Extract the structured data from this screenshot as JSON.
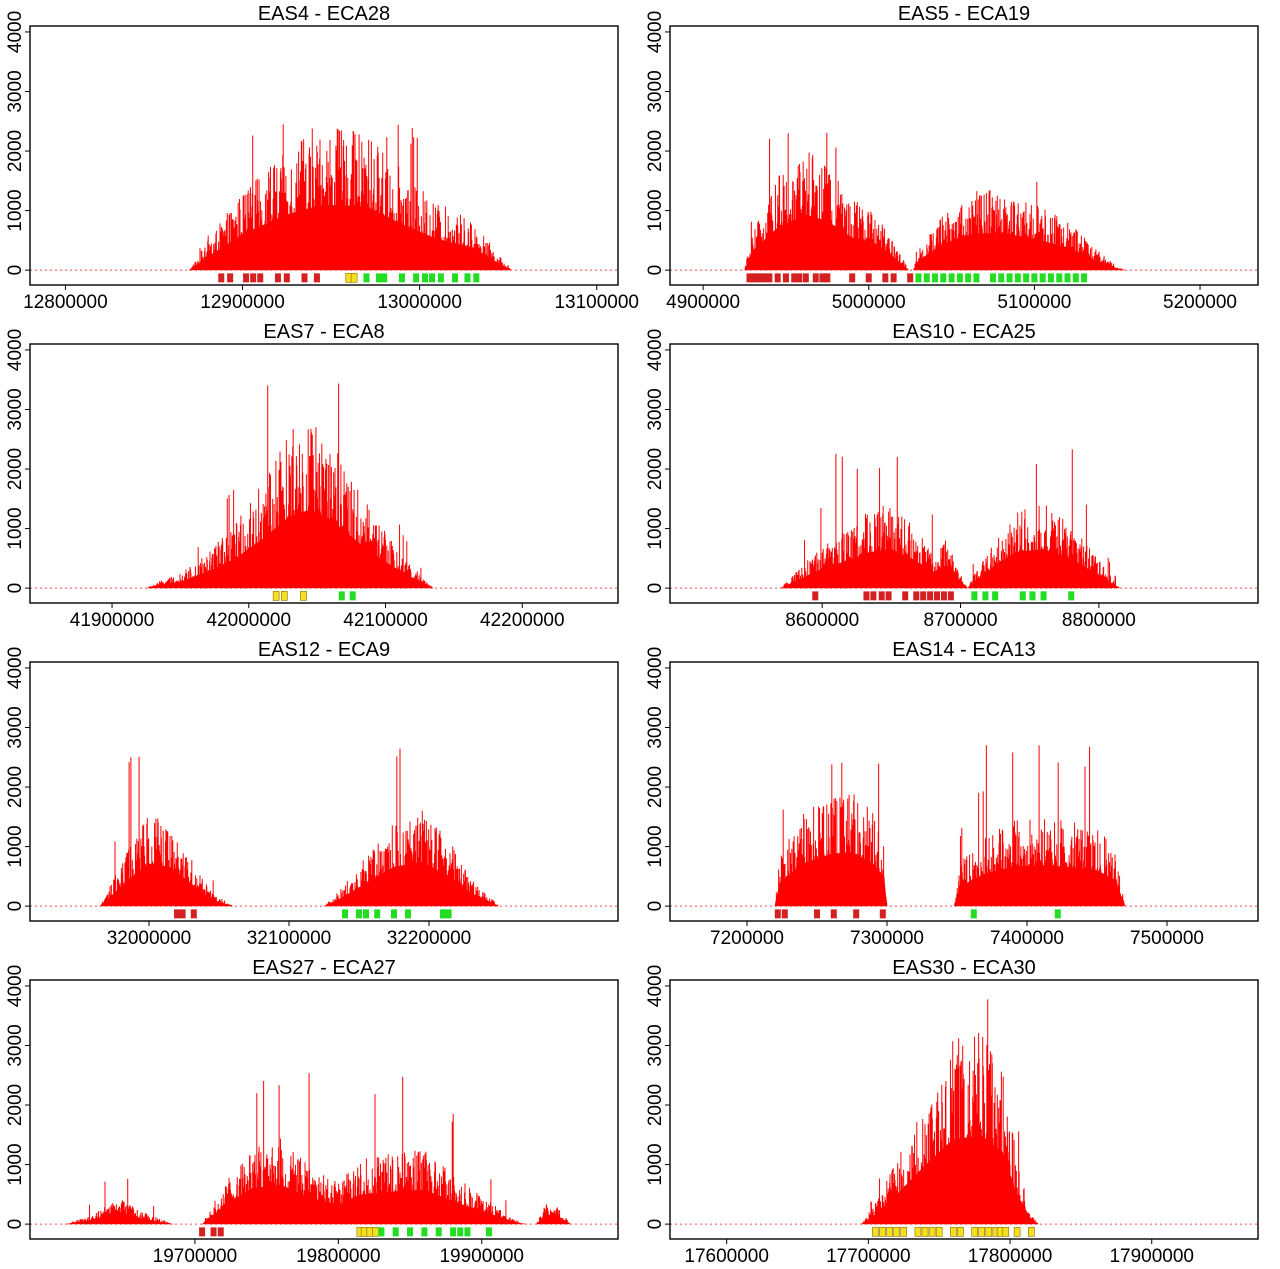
{
  "colors": {
    "coverage": "#ff0000",
    "marker_red": "#d42020",
    "marker_yellow": "#f5e020",
    "marker_green": "#22dd22",
    "marker_border": "#8a6a00",
    "frame": "#000000"
  },
  "chart_data": [
    {
      "type": "area",
      "title": "EAS4 - ECA28",
      "xlim": [
        12780000,
        13112000
      ],
      "ylim": [
        -250,
        4100
      ],
      "yticks": [
        0,
        1000,
        2000,
        3000,
        4000
      ],
      "xticks": [
        12800000,
        12900000,
        13000000,
        13100000
      ],
      "profile": [
        [
          12870000,
          0
        ],
        [
          12880000,
          400
        ],
        [
          12900000,
          1100
        ],
        [
          12925000,
          1700
        ],
        [
          12945000,
          2000
        ],
        [
          12970000,
          1950
        ],
        [
          12990000,
          1400
        ],
        [
          13010000,
          950
        ],
        [
          13030000,
          700
        ],
        [
          13045000,
          200
        ],
        [
          13052000,
          0
        ]
      ],
      "peak_max": 2450,
      "markers": {
        "red": [
          12888000,
          12893000,
          12902000,
          12906000,
          12910000,
          12920000,
          12925000,
          12935000,
          12942000
        ],
        "yellow": [
          12960000,
          12963000
        ],
        "green": [
          12970000,
          12977000,
          12980000,
          12990000,
          12998000,
          13003000,
          13007000,
          13012000,
          13020000,
          13027000,
          13032000
        ]
      }
    },
    {
      "type": "area",
      "title": "EAS5 - ECA19",
      "xlim": [
        4880000,
        5235000
      ],
      "ylim": [
        -250,
        4100
      ],
      "yticks": [
        0,
        1000,
        2000,
        3000,
        4000
      ],
      "xticks": [
        4900000,
        5000000,
        5100000,
        5200000
      ],
      "profile": [
        [
          4925000,
          0
        ],
        [
          4930000,
          600
        ],
        [
          4945000,
          1300
        ],
        [
          4962000,
          1700
        ],
        [
          4975000,
          1500
        ],
        [
          4990000,
          1000
        ],
        [
          5005000,
          800
        ],
        [
          5020000,
          200
        ],
        [
          5024000,
          0
        ],
        [
          5027000,
          0
        ],
        [
          5030000,
          300
        ],
        [
          5045000,
          800
        ],
        [
          5062000,
          1100
        ],
        [
          5080000,
          1150
        ],
        [
          5100000,
          950
        ],
        [
          5120000,
          700
        ],
        [
          5135000,
          350
        ],
        [
          5150000,
          50
        ],
        [
          5155000,
          0
        ]
      ],
      "peak_max": 2420,
      "markers": {
        "red": [
          4928000,
          4931000,
          4934000,
          4937000,
          4940000,
          4945000,
          4950000,
          4955000,
          4958000,
          4962000,
          4968000,
          4972000,
          4975000,
          4990000,
          5000000,
          5010000,
          5015000,
          5025000
        ],
        "yellow": [],
        "green": [
          5030000,
          5035000,
          5040000,
          5045000,
          5050000,
          5055000,
          5060000,
          5065000,
          5075000,
          5080000,
          5085000,
          5090000,
          5095000,
          5100000,
          5105000,
          5110000,
          5115000,
          5120000,
          5125000,
          5130000
        ]
      }
    },
    {
      "type": "area",
      "title": "EAS7 - ECA8",
      "xlim": [
        41840000,
        42270000
      ],
      "ylim": [
        -250,
        4100
      ],
      "yticks": [
        0,
        1000,
        2000,
        3000,
        4000
      ],
      "xticks": [
        41900000,
        42000000,
        42100000,
        42200000
      ],
      "profile": [
        [
          41925000,
          0
        ],
        [
          41935000,
          100
        ],
        [
          41950000,
          200
        ],
        [
          41970000,
          500
        ],
        [
          41990000,
          900
        ],
        [
          42010000,
          1500
        ],
        [
          42030000,
          2200
        ],
        [
          42045000,
          2400
        ],
        [
          42060000,
          2100
        ],
        [
          42080000,
          1400
        ],
        [
          42100000,
          800
        ],
        [
          42120000,
          300
        ],
        [
          42135000,
          0
        ]
      ],
      "peak_max": 3750,
      "markers": {
        "red": [],
        "yellow": [
          42020000,
          42026000,
          42040000
        ],
        "green": [
          42068000,
          42076000
        ]
      }
    },
    {
      "type": "area",
      "title": "EAS10 - ECA25",
      "xlim": [
        8490000,
        8915000
      ],
      "ylim": [
        -250,
        4100
      ],
      "yticks": [
        0,
        1000,
        2000,
        3000,
        4000
      ],
      "xticks": [
        8600000,
        8700000,
        8800000
      ],
      "profile": [
        [
          8570000,
          0
        ],
        [
          8580000,
          200
        ],
        [
          8595000,
          500
        ],
        [
          8615000,
          800
        ],
        [
          8635000,
          1100
        ],
        [
          8650000,
          1200
        ],
        [
          8665000,
          900
        ],
        [
          8680000,
          500
        ],
        [
          8690000,
          700
        ],
        [
          8700000,
          200
        ],
        [
          8705000,
          0
        ],
        [
          8710000,
          200
        ],
        [
          8725000,
          700
        ],
        [
          8740000,
          1100
        ],
        [
          8760000,
          1200
        ],
        [
          8780000,
          900
        ],
        [
          8800000,
          400
        ],
        [
          8815000,
          0
        ]
      ],
      "peak_max": 2350,
      "markers": {
        "red": [
          8595000,
          8632000,
          8637000,
          8643000,
          8648000,
          8660000,
          8668000,
          8673000,
          8678000,
          8683000,
          8688000,
          8693000
        ],
        "yellow": [],
        "green": [
          8710000,
          8718000,
          8725000,
          8745000,
          8752000,
          8760000,
          8780000
        ]
      }
    },
    {
      "type": "area",
      "title": "EAS12 - ECA9",
      "xlim": [
        31915000,
        32335000
      ],
      "ylim": [
        -250,
        4100
      ],
      "yticks": [
        0,
        1000,
        2000,
        3000,
        4000
      ],
      "xticks": [
        32000000,
        32100000,
        32200000
      ],
      "profile": [
        [
          31965000,
          0
        ],
        [
          31970000,
          200
        ],
        [
          31985000,
          800
        ],
        [
          32000000,
          1300
        ],
        [
          32015000,
          1200
        ],
        [
          32030000,
          700
        ],
        [
          32045000,
          200
        ],
        [
          32060000,
          0
        ],
        [
          32125000,
          0
        ],
        [
          32135000,
          200
        ],
        [
          32155000,
          700
        ],
        [
          32175000,
          1200
        ],
        [
          32195000,
          1350
        ],
        [
          32215000,
          900
        ],
        [
          32230000,
          400
        ],
        [
          32250000,
          0
        ]
      ],
      "peak_max": 2650,
      "markers": {
        "red": [
          32020000,
          32024000,
          32032000
        ],
        "yellow": [],
        "green": [
          32140000,
          32150000,
          32155000,
          32163000,
          32175000,
          32185000,
          32210000,
          32214000
        ]
      }
    },
    {
      "type": "area",
      "title": "EAS14 - ECA13",
      "xlim": [
        7145000,
        7565000
      ],
      "ylim": [
        -250,
        4100
      ],
      "yticks": [
        0,
        1000,
        2000,
        3000,
        4000
      ],
      "xticks": [
        7200000,
        7300000,
        7400000,
        7500000
      ],
      "profile": [
        [
          7220000,
          0
        ],
        [
          7223000,
          700
        ],
        [
          7240000,
          1300
        ],
        [
          7260000,
          1600
        ],
        [
          7275000,
          1650
        ],
        [
          7290000,
          1300
        ],
        [
          7298000,
          900
        ],
        [
          7300000,
          0
        ],
        [
          7348000,
          0
        ],
        [
          7352000,
          600
        ],
        [
          7370000,
          1000
        ],
        [
          7390000,
          1200
        ],
        [
          7410000,
          1250
        ],
        [
          7430000,
          1200
        ],
        [
          7450000,
          1100
        ],
        [
          7463000,
          800
        ],
        [
          7470000,
          0
        ]
      ],
      "peak_max": 2750,
      "markers": {
        "red": [
          7222000,
          7227000,
          7250000,
          7262000,
          7278000,
          7297000
        ],
        "yellow": [],
        "green": [
          7362000,
          7422000
        ]
      }
    },
    {
      "type": "area",
      "title": "EAS27 - ECA27",
      "xlim": [
        19585000,
        19995000
      ],
      "ylim": [
        -250,
        4100
      ],
      "yticks": [
        0,
        1000,
        2000,
        3000,
        4000
      ],
      "xticks": [
        19700000,
        19800000,
        19900000
      ],
      "profile": [
        [
          19610000,
          0
        ],
        [
          19630000,
          150
        ],
        [
          19645000,
          400
        ],
        [
          19660000,
          200
        ],
        [
          19685000,
          0
        ],
        [
          19705000,
          0
        ],
        [
          19710000,
          200
        ],
        [
          19725000,
          700
        ],
        [
          19740000,
          1100
        ],
        [
          19760000,
          1200
        ],
        [
          19780000,
          800
        ],
        [
          19800000,
          600
        ],
        [
          19815000,
          900
        ],
        [
          19840000,
          1000
        ],
        [
          19860000,
          1050
        ],
        [
          19880000,
          700
        ],
        [
          19900000,
          400
        ],
        [
          19920000,
          100
        ],
        [
          19930000,
          0
        ],
        [
          19938000,
          0
        ],
        [
          19945000,
          300
        ],
        [
          19953000,
          250
        ],
        [
          19962000,
          0
        ]
      ],
      "peak_max": 2550,
      "markers": {
        "red": [
          19705000,
          19713000,
          19718000
        ],
        "yellow": [
          19815000,
          19818000,
          19822000,
          19826000
        ],
        "green": [
          19830000,
          19840000,
          19850000,
          19860000,
          19870000,
          19880000,
          19885000,
          19890000,
          19905000
        ]
      }
    },
    {
      "type": "area",
      "title": "EAS30 - ECA30",
      "xlim": [
        17560000,
        17975000
      ],
      "ylim": [
        -250,
        4100
      ],
      "yticks": [
        0,
        1000,
        2000,
        3000,
        4000
      ],
      "xticks": [
        17600000,
        17700000,
        17800000,
        17900000
      ],
      "profile": [
        [
          17695000,
          0
        ],
        [
          17705000,
          300
        ],
        [
          17720000,
          900
        ],
        [
          17740000,
          1800
        ],
        [
          17760000,
          2600
        ],
        [
          17780000,
          2700
        ],
        [
          17795000,
          2200
        ],
        [
          17805000,
          900
        ],
        [
          17815000,
          150
        ],
        [
          17820000,
          0
        ]
      ],
      "peak_max": 4100,
      "markers": {
        "red": [],
        "yellow": [
          17705000,
          17710000,
          17715000,
          17720000,
          17725000,
          17735000,
          17740000,
          17745000,
          17750000,
          17760000,
          17765000,
          17775000,
          17780000,
          17785000,
          17790000,
          17793000,
          17797000,
          17805000,
          17815000
        ],
        "green": []
      }
    }
  ]
}
